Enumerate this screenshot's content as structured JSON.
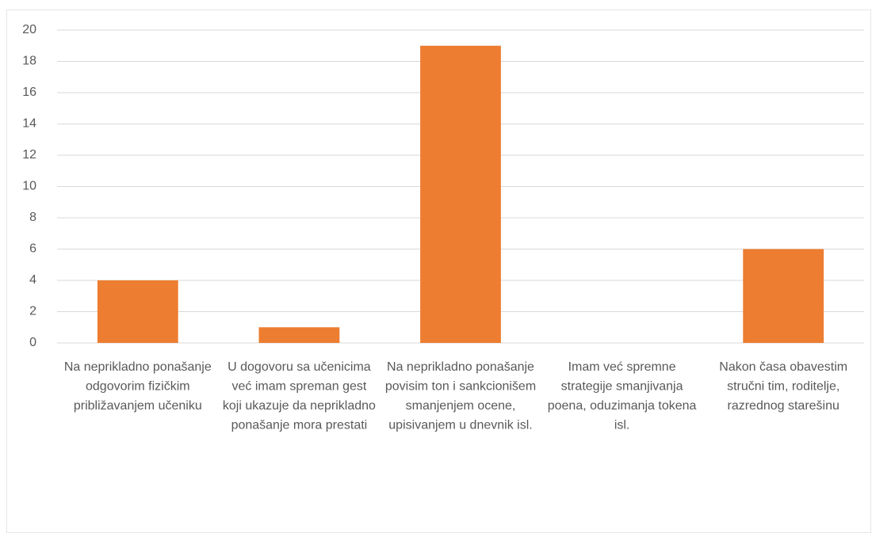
{
  "chart_data": {
    "type": "bar",
    "categories": [
      "Na neprikladno ponašanje odgovorim fizičkim približavanjem učeniku",
      "U dogovoru sa učenicima već imam spreman gest koji ukazuje da neprikladno ponašanje mora prestati",
      "Na neprikladno ponašanje povisim ton i sankcionišem smanjenjem ocene, upisivanjem u dnevnik isl.",
      "Imam već spremne strategije smanjivanja poena, oduzimanja tokena isl.",
      "Nakon časa obavestim stručni tim, roditelje, razrednog starešinu"
    ],
    "values": [
      4,
      1,
      19,
      0,
      6
    ],
    "color": "#ed7d31",
    "ylim": [
      0,
      20
    ],
    "yticks": [
      0,
      2,
      4,
      6,
      8,
      10,
      12,
      14,
      16,
      18,
      20
    ],
    "grid": true
  }
}
